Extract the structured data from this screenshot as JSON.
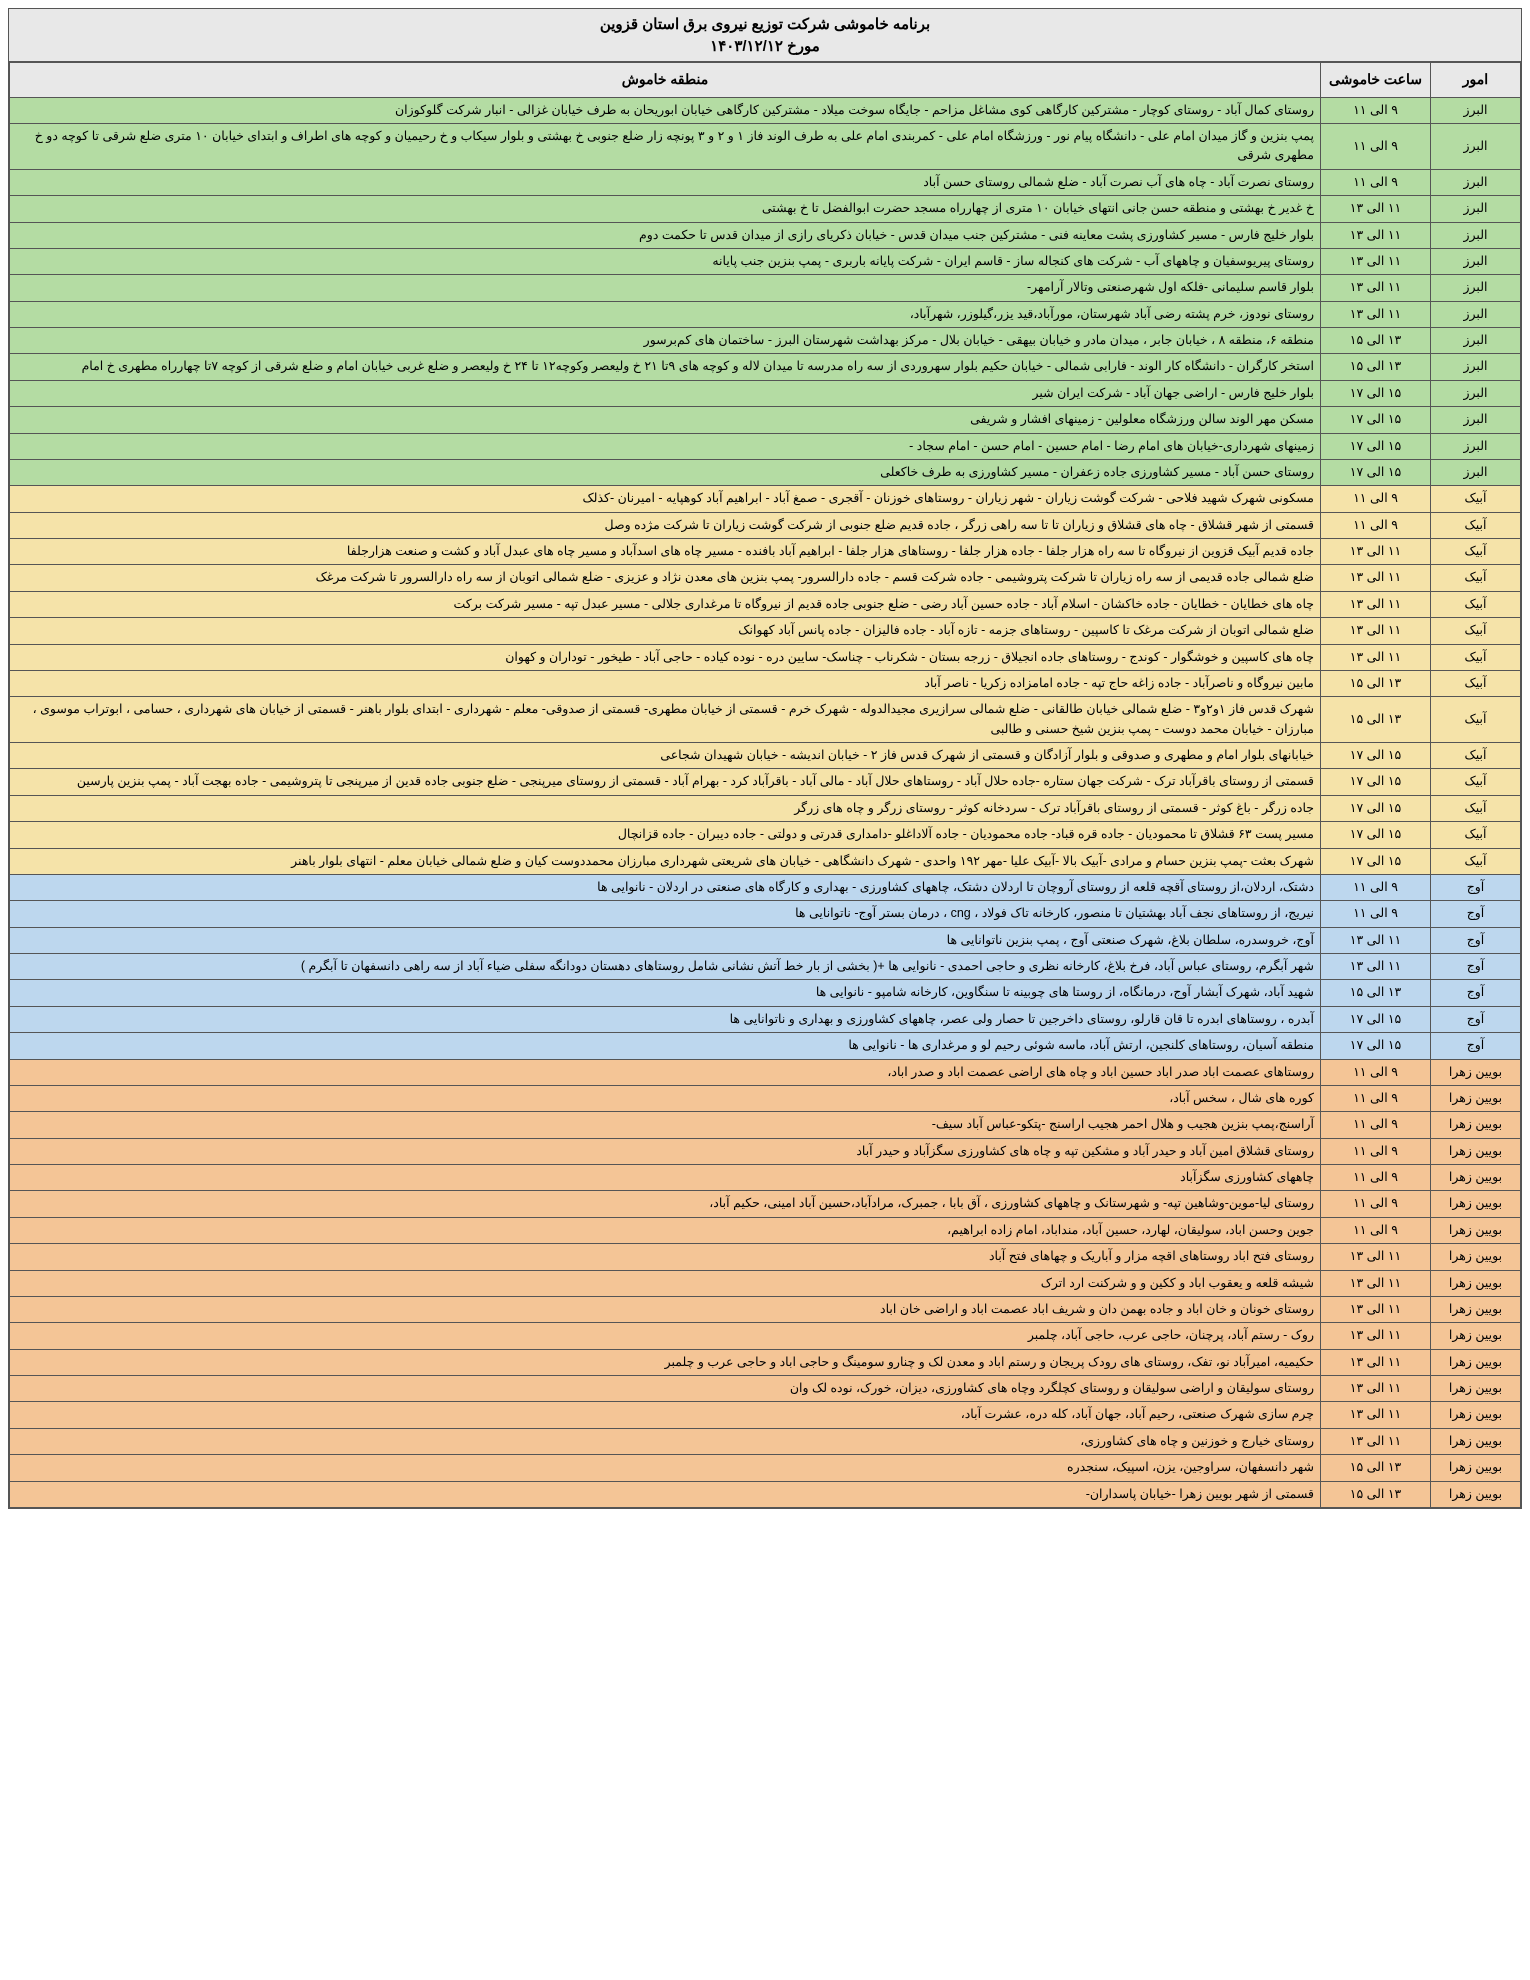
{
  "title": "برنامه خاموشی شرکت توزیع نیروی برق استان قزوین",
  "subtitle": "مورخ ۱۴۰۳/۱۲/۱۲",
  "headers": {
    "omur": "امور",
    "time": "ساعت خاموشی",
    "area": "منطقه خاموش"
  },
  "colors": {
    "header": "#e8e8e8",
    "green": "#b4dca3",
    "yellow": "#f5e3a9",
    "blue": "#bdd7ee",
    "orange": "#f4c596"
  },
  "rows": [
    {
      "c": "green",
      "omur": "البرز",
      "time": "۹ الی ۱۱",
      "area": "روستای کمال آباد - روستای کوچار - مشترکین کارگاهی کوی مشاغل مزاحم - جایگاه سوخت میلاد - مشترکین کارگاهی خیابان ابوریحان به طرف خیابان غزالی - انبار شرکت گلوکوزان"
    },
    {
      "c": "green",
      "omur": "البرز",
      "time": "۹ الی ۱۱",
      "area": "پمپ بنزین و گاز میدان امام علی - دانشگاه پیام نور - ورزشگاه امام علی - کمربندی امام علی به طرف الوند فاز ۱ و ۲ و ۳ پونچه زار ضلع جنوبی خ بهشتی و بلوار سیکاب و خ رحیمیان و کوچه های اطراف و ابتدای خیابان ۱۰ متری ضلع شرقی تا کوچه دو خ مطهری شرقی"
    },
    {
      "c": "green",
      "omur": "البرز",
      "time": "۹ الی ۱۱",
      "area": "روستای نصرت آباد - چاه های آب نصرت آباد - ضلع شمالی روستای حسن آباد"
    },
    {
      "c": "green",
      "omur": "البرز",
      "time": "۱۱ الی ۱۳",
      "area": "خ غدیر خ بهشتی و منطقه حسن جانی انتهای خیابان ۱۰ متری از چهارراه مسجد حضرت ابوالفضل تا خ بهشتی"
    },
    {
      "c": "green",
      "omur": "البرز",
      "time": "۱۱ الی ۱۳",
      "area": "بلوار خلیج فارس - مسیر کشاورزی پشت معاینه فنی - مشترکین جنب میدان قدس - خیابان ذکریای رازی از میدان قدس تا حکمت دوم"
    },
    {
      "c": "green",
      "omur": "البرز",
      "time": "۱۱ الی ۱۳",
      "area": "روستای پیریوسفیان و چاههای آب - شرکت های کنجاله ساز - قاسم ایران - شرکت پایانه باربری - پمپ بنزین جنب پایانه"
    },
    {
      "c": "green",
      "omur": "البرز",
      "time": "۱۱ الی ۱۳",
      "area": "بلوار قاسم سلیمانی -فلکه اول شهرصنعتی وتالار آرامهر-"
    },
    {
      "c": "green",
      "omur": "البرز",
      "time": "۱۱ الی ۱۳",
      "area": "روستای نودوز، خرم پشته رضی آباد شهرستان، مورآباد،قید یزر،گیلوزر، شهرآباد،"
    },
    {
      "c": "green",
      "omur": "البرز",
      "time": "۱۳ الی ۱۵",
      "area": "منطقه ۶، منطقه ۸ ، خیابان جابر ، میدان مادر و خیابان بیهقی - خیابان بلال - مرکز بهداشت شهرستان البرز - ساختمان های کم‌برسور"
    },
    {
      "c": "green",
      "omur": "البرز",
      "time": "۱۳ الی ۱۵",
      "area": "استخر کارگران - دانشگاه کار الوند - فارابی شمالی - خیابان حکیم بلوار سهروردی از سه راه مدرسه تا میدان لاله و کوچه های ۹تا ۲۱ خ ولیعصر وکوچه۱۲ تا ۲۴ خ ولیعصر و ضلع غربی خیابان امام و ضلع شرقی از کوچه ۷تا چهارراه مطهری خ امام"
    },
    {
      "c": "green",
      "omur": "البرز",
      "time": "۱۵ الی ۱۷",
      "area": "بلوار خلیج فارس - اراضی جهان آباد - شرکت ایران شیر"
    },
    {
      "c": "green",
      "omur": "البرز",
      "time": "۱۵ الی ۱۷",
      "area": "مسکن مهر الوند سالن ورزشگاه معلولین - زمینهای افشار و شریفی"
    },
    {
      "c": "green",
      "omur": "البرز",
      "time": "۱۵ الی ۱۷",
      "area": "زمینهای شهرداری-خیابان های امام رضا - امام حسین - امام حسن - امام سجاد -"
    },
    {
      "c": "green",
      "omur": "البرز",
      "time": "۱۵ الی ۱۷",
      "area": "روستای حسن آباد - مسیر کشاورزی جاده زعفران - مسیر کشاورزی به طرف خاکعلی"
    },
    {
      "c": "yellow",
      "omur": "آبیک",
      "time": "۹ الی ۱۱",
      "area": "مسکونی شهرک شهید فلاحی - شرکت گوشت زیاران - شهر زیاران - روستاهای خوزنان - آقجری - صمغ آباد - ابراهیم آباد کوهپایه - امیرنان -کذلک"
    },
    {
      "c": "yellow",
      "omur": "آبیک",
      "time": "۹ الی ۱۱",
      "area": "قسمتی از شهر قشلاق - چاه های قشلاق و زیاران تا تا سه راهی زرگر ، جاده قدیم ضلع جنوبی از شرکت گوشت زیاران تا شرکت مژده وصل"
    },
    {
      "c": "yellow",
      "omur": "آبیک",
      "time": "۱۱ الی ۱۳",
      "area": "جاده قدیم آبیک قزوین از نیروگاه تا سه راه هزار جلفا - جاده هزار جلفا - روستاهای هزار جلفا - ابراهیم آباد بافنده - مسیر چاه های اسدآباد و مسیر چاه های عبدل آباد و کشت و صنعت هزارجلفا"
    },
    {
      "c": "yellow",
      "omur": "آبیک",
      "time": "۱۱ الی ۱۳",
      "area": "ضلع شمالی جاده قدیمی از سه راه زیاران تا شرکت پتروشیمی - جاده شرکت قسم - جاده دارالسرور- پمپ بنزین های معدن نژاد و عزیزی - ضلع شمالی اتوبان از سه راه دارالسرور تا شرکت مرغک"
    },
    {
      "c": "yellow",
      "omur": "آبیک",
      "time": "۱۱ الی ۱۳",
      "area": "چاه های خطایان - خطایان - جاده خاکشان - اسلام آباد - جاده حسین آباد رضی - ضلع جنوبی جاده قدیم از نیروگاه تا مرغداری جلالی - مسیر عبدل تپه - مسیر شرکت برکت"
    },
    {
      "c": "yellow",
      "omur": "آبیک",
      "time": "۱۱ الی ۱۳",
      "area": "ضلع شمالی اتوبان از شرکت مرغک تا کاسپین - روستاهای جزمه - تازه آباد - جاده فالیزان - جاده پانس آباد کهوانک"
    },
    {
      "c": "yellow",
      "omur": "آبیک",
      "time": "۱۱ الی ۱۳",
      "area": "چاه های کاسپین و خوشگوار - کوندج - روستاهای جاده انجیلاق - زرجه بستان - شکرناب - چناسک- سایین دره - نوده کیاده - حاجی آباد - طیخور - توداران و کهوان"
    },
    {
      "c": "yellow",
      "omur": "آبیک",
      "time": "۱۳ الی ۱۵",
      "area": "مابین نیروگاه و ناصرآباد - جاده زاغه حاج تپه - جاده امامزاده زکریا - ناصر آباد"
    },
    {
      "c": "yellow",
      "omur": "آبیک",
      "time": "۱۳ الی ۱۵",
      "area": "شهرک قدس فاز ۱و۲و۳ - ضلع شمالی خیابان طالقانی - ضلع شمالی سرازیری مجیدالدوله - شهرک خرم - قسمتی از خیابان مطهری- قسمتی از صدوقی- معلم - شهرداری - ابتدای بلوار باهنر - قسمتی از خیابان های شهرداری ، حسامی ، ابوتراب موسوی ، مبارزان - خیابان محمد دوست - پمپ بنزین شیخ حسنی و طالبی"
    },
    {
      "c": "yellow",
      "omur": "آبیک",
      "time": "۱۵ الی ۱۷",
      "area": "خیابانهای بلوار امام و مطهری و صدوقی و بلوار آزادگان و قسمتی از شهرک قدس فاز ۲ - خیابان اندیشه - خیابان شهیدان شجاعی"
    },
    {
      "c": "yellow",
      "omur": "آبیک",
      "time": "۱۵ الی ۱۷",
      "area": "قسمتی از روستای باقرآباد ترک - شرکت جهان ستاره -جاده حلال آباد - روستاهای حلال آباد - مالی آباد - باقرآباد کرد - بهرام آباد - قسمتی از روستای میرپنجی - ضلع جنوبی جاده قدین از میرپنجی تا پتروشیمی - جاده بهجت آباد - پمپ بنزین پارسین"
    },
    {
      "c": "yellow",
      "omur": "آبیک",
      "time": "۱۵ الی ۱۷",
      "area": "جاده زرگر - باغ کوثر - قسمتی از روستای باقرآباد ترک - سردخانه کوثر - روستای زرگر و چاه های زرگر"
    },
    {
      "c": "yellow",
      "omur": "آبیک",
      "time": "۱۵ الی ۱۷",
      "area": "مسیر پست ۶۳ قشلاق تا محمودیان - جاده قره قباد- جاده محمودیان - جاده آلاداغلو -دامداری قدرتی و دولتی - جاده دیبران - جاده قزانچال"
    },
    {
      "c": "yellow",
      "omur": "آبیک",
      "time": "۱۵ الی ۱۷",
      "area": "شهرک بعثت -پمپ بنزین حسام و مرادی -آبیک بالا -آبیک علیا -مهر ۱۹۲ واحدی - شهرک دانشگاهی - خیابان های شریعتی شهرداری مبارزان محمددوست کیان و ضلع شمالی خیابان معلم - انتهای بلوار باهنر"
    },
    {
      "c": "blue",
      "omur": "آوج",
      "time": "۹ الی ۱۱",
      "area": "دشتک، اردلان،از روستای آقچه قلعه از روستای آروچان تا اردلان دشتک، چاههای کشاورزی - بهداری و کارگاه های صنعتی در اردلان - نانوایی ها"
    },
    {
      "c": "blue",
      "omur": "آوج",
      "time": "۹ الی ۱۱",
      "area": "نیریج، از روستاهای نجف آباد بهشتیان تا منصور، کارخانه تاک فولاد ، cng ، درمان بستر آوج- ناتوانایی ها"
    },
    {
      "c": "blue",
      "omur": "آوج",
      "time": "۱۱ الی ۱۳",
      "area": "آوج، خروسدره، سلطان بلاغ، شهرک صنعتی آوج ، پمپ بنزین ناتوانایی ها"
    },
    {
      "c": "blue",
      "omur": "آوج",
      "time": "۱۱ الی ۱۳",
      "area": "شهر آبگرم، روستای عباس آباد، فرخ بلاغ، کارخانه نظری و حاجی احمدی - نانوایی ها +( بخشی از بار خط آتش نشانی شامل روستاهای دهستان دودانگه سفلی ضیاء آباد از سه راهی دانسفهان تا آبگرم )"
    },
    {
      "c": "blue",
      "omur": "آوج",
      "time": "۱۳ الی ۱۵",
      "area": "شهید آباد، شهرک آبشار آوج، درمانگاه، از روستا های چوبینه تا سنگاوین، کارخانه شامپو - نانوایی ها"
    },
    {
      "c": "blue",
      "omur": "آوج",
      "time": "۱۵ الی ۱۷",
      "area": "آبدره ، روستاهای ابدره تا قان قارلو، روستای داخرجین تا حصار ولی عصر، چاههای کشاورزی و بهداری و ناتوانایی ها"
    },
    {
      "c": "blue",
      "omur": "آوج",
      "time": "۱۵ الی ۱۷",
      "area": "منطقه آسیان، روستاهای کلنجین، ارتش آباد، ماسه شوئی رحیم لو و مرغداری ها - نانوایی ها"
    },
    {
      "c": "orange",
      "omur": "بویین زهرا",
      "time": "۹ الی ۱۱",
      "area": "روستاهای عصمت اباد صدر اباد حسین اباد و چاه های اراضی عصمت اباد و صدر اباد،"
    },
    {
      "c": "orange",
      "omur": "بویین زهرا",
      "time": "۹ الی ۱۱",
      "area": "کوره های شال ، سخس آباد،"
    },
    {
      "c": "orange",
      "omur": "بویین زهرا",
      "time": "۹ الی ۱۱",
      "area": "آراسنج،پمپ بنزین هجیب و هلال احمر هجیب اراسنج -پتکو-عباس آباد سیف-"
    },
    {
      "c": "orange",
      "omur": "بویین زهرا",
      "time": "۹ الی ۱۱",
      "area": "روستای قشلاق امین آباد و حیدر آباد و مشکین تپه و چاه های کشاورزی سگزآباد و حیدر آباد"
    },
    {
      "c": "orange",
      "omur": "بویین زهرا",
      "time": "۹ الی ۱۱",
      "area": "چاههای کشاورزی سگزآباد"
    },
    {
      "c": "orange",
      "omur": "بویین زهرا",
      "time": "۹ الی ۱۱",
      "area": "روستای لیا-موین-وشاهین تپه- و شهرستانک و چاههای کشاورزی ، آق بابا ، جمبرک، مرادآباد،حسین آباد امینی، حکیم آباد،"
    },
    {
      "c": "orange",
      "omur": "بویین زهرا",
      "time": "۹ الی ۱۱",
      "area": "جوین وحسن اباد، سولیقان، لهارد، حسین آباد، منداباد، امام زاده ابراهیم،"
    },
    {
      "c": "orange",
      "omur": "بویین زهرا",
      "time": "۱۱ الی ۱۳",
      "area": "روستای فتح اباد روستاهای اقچه مزار و آباریک و چهاهای فتح آباد"
    },
    {
      "c": "orange",
      "omur": "بویین زهرا",
      "time": "۱۱ الی ۱۳",
      "area": "شیشه قلعه و یعقوب اباد و ککین و و شرکنت ارد اترک"
    },
    {
      "c": "orange",
      "omur": "بویین زهرا",
      "time": "۱۱ الی ۱۳",
      "area": "روستای خونان و خان اباد و جاده بهمن دان و شریف اباد عصمت اباد و اراضی خان اباد"
    },
    {
      "c": "orange",
      "omur": "بویین زهرا",
      "time": "۱۱ الی ۱۳",
      "area": "روک - رستم آباد، پرچنان، حاجی عرب، حاجی آباد، چلمبر"
    },
    {
      "c": "orange",
      "omur": "بویین زهرا",
      "time": "۱۱ الی ۱۳",
      "area": "حکیمیه، امیرآباد نو، تفک، روستای های رودک پریجان و رستم اباد و معدن لک و چنارو سومینگ و حاجی اباد و حاجی عرب و چلمبر"
    },
    {
      "c": "orange",
      "omur": "بویین زهرا",
      "time": "۱۱ الی ۱۳",
      "area": "روستای سولیقان و اراضی سولیقان و روستای کچلگرد وچاه های کشاورزی، دیزان، خورک، نوده لک وان"
    },
    {
      "c": "orange",
      "omur": "بویین زهرا",
      "time": "۱۱ الی ۱۳",
      "area": "چرم سازی شهرک صنعتی، رحیم آباد، جهان آباد، کله دره، عشرت آباد،"
    },
    {
      "c": "orange",
      "omur": "بویین زهرا",
      "time": "۱۱ الی ۱۳",
      "area": "روستای خیارج و خوزنین و چاه های کشاورزی،"
    },
    {
      "c": "orange",
      "omur": "بویین زهرا",
      "time": "۱۳ الی ۱۵",
      "area": "شهر دانسفهان، سراوجین، یزن، اسپیک، سنجدره"
    },
    {
      "c": "orange",
      "omur": "بویین زهرا",
      "time": "۱۳ الی ۱۵",
      "area": "قسمتی از شهر بویین زهرا -خیابان پاسداران-"
    }
  ]
}
